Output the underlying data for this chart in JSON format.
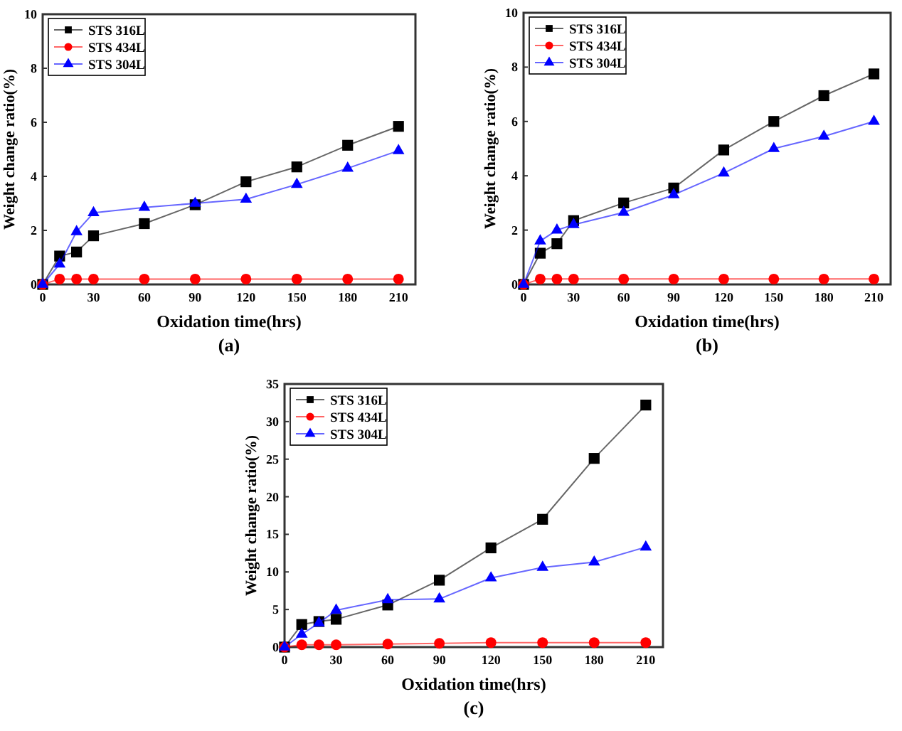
{
  "chart_data": [
    {
      "type": "line",
      "title": "(a)",
      "xlabel": "Oxidation time(hrs)",
      "ylabel": "Weight change ratio(%)",
      "x": [
        0,
        10,
        20,
        30,
        60,
        90,
        120,
        150,
        180,
        210
      ],
      "xlim": [
        0,
        220
      ],
      "xticks": [
        0,
        30,
        60,
        90,
        120,
        150,
        180,
        210
      ],
      "ylim": [
        0,
        10
      ],
      "yticks": [
        0,
        2,
        4,
        6,
        8,
        10
      ],
      "legend": "top left",
      "grid": false,
      "series": [
        {
          "name": "STS 316L",
          "color": "#000000",
          "marker": "square",
          "values": [
            0,
            1.05,
            1.2,
            1.8,
            2.25,
            2.95,
            3.8,
            4.35,
            5.15,
            5.85
          ]
        },
        {
          "name": "STS 434L",
          "color": "#ff0000",
          "marker": "circle",
          "values": [
            0,
            0.2,
            0.2,
            0.2,
            0.2,
            0.2,
            0.2,
            0.2,
            0.2,
            0.2
          ]
        },
        {
          "name": "STS 304L",
          "color": "#0000ff",
          "marker": "triangle",
          "values": [
            0,
            0.75,
            1.95,
            2.65,
            2.85,
            3.0,
            3.15,
            3.7,
            4.3,
            4.95
          ]
        }
      ]
    },
    {
      "type": "line",
      "title": "(b)",
      "xlabel": "Oxidation time(hrs)",
      "ylabel": "Weight change ratio(%)",
      "x": [
        0,
        10,
        20,
        30,
        60,
        90,
        120,
        150,
        180,
        210
      ],
      "xlim": [
        0,
        220
      ],
      "xticks": [
        0,
        30,
        60,
        90,
        120,
        150,
        180,
        210
      ],
      "ylim": [
        0,
        10
      ],
      "yticks": [
        0,
        2,
        4,
        6,
        8,
        10
      ],
      "legend": "top left",
      "grid": false,
      "series": [
        {
          "name": "STS 316L",
          "color": "#000000",
          "marker": "square",
          "values": [
            0,
            1.15,
            1.5,
            2.35,
            3.0,
            3.55,
            4.95,
            6.0,
            6.95,
            7.75
          ]
        },
        {
          "name": "STS 434L",
          "color": "#ff0000",
          "marker": "circle",
          "values": [
            0,
            0.2,
            0.2,
            0.2,
            0.2,
            0.2,
            0.2,
            0.2,
            0.2,
            0.2
          ]
        },
        {
          "name": "STS 304L",
          "color": "#0000ff",
          "marker": "triangle",
          "values": [
            0,
            1.6,
            2.0,
            2.2,
            2.65,
            3.3,
            4.1,
            5.0,
            5.45,
            6.0
          ]
        }
      ]
    },
    {
      "type": "line",
      "title": "(c)",
      "xlabel": "Oxidation time(hrs)",
      "ylabel": "Weight change ratio(%)",
      "x": [
        0,
        10,
        20,
        30,
        60,
        90,
        120,
        150,
        180,
        210
      ],
      "xlim": [
        0,
        220
      ],
      "xticks": [
        0,
        30,
        60,
        90,
        120,
        150,
        180,
        210
      ],
      "ylim": [
        0,
        35
      ],
      "yticks": [
        0,
        5,
        10,
        15,
        20,
        25,
        30,
        35
      ],
      "legend": "top left",
      "grid": false,
      "series": [
        {
          "name": "STS 316L",
          "color": "#000000",
          "marker": "square",
          "values": [
            0,
            3.0,
            3.4,
            3.7,
            5.6,
            8.9,
            13.2,
            17.0,
            25.1,
            32.2
          ]
        },
        {
          "name": "STS 434L",
          "color": "#ff0000",
          "marker": "circle",
          "values": [
            0,
            0.3,
            0.3,
            0.3,
            0.4,
            0.5,
            0.6,
            0.6,
            0.6,
            0.6
          ]
        },
        {
          "name": "STS 304L",
          "color": "#0000ff",
          "marker": "triangle",
          "values": [
            0,
            1.7,
            3.2,
            4.9,
            6.3,
            6.4,
            9.2,
            10.6,
            11.3,
            13.3
          ]
        }
      ]
    }
  ]
}
